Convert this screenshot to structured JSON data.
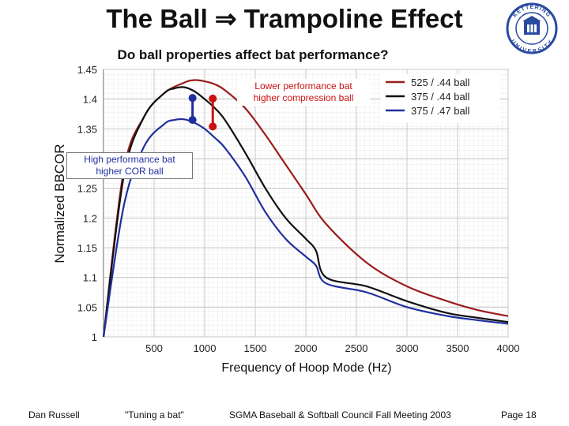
{
  "slide": {
    "title_prefix": "The Ball",
    "title_arrow": "⇒",
    "title_suffix": "Trampoline Effect",
    "subtitle": "Do ball properties affect bat performance?"
  },
  "logo": {
    "text_top": "KETTERING",
    "text_bottom": "UNIVERSITY",
    "color": "#2a4aa0"
  },
  "annotations": {
    "lower": [
      "Lower performance bat",
      "higher compression ball"
    ],
    "higher": [
      "High performance bat",
      "higher COR ball"
    ]
  },
  "footer": {
    "author": "Dan Russell",
    "talk": "\"Tuning a bat\"",
    "event": "SGMA Baseball & Softball Council Fall Meeting 2003",
    "page": "Page 18"
  },
  "chart_data": {
    "type": "line",
    "xlabel": "Frequency of Hoop Mode (Hz)",
    "ylabel": "Normalized BBCOR",
    "xlim": [
      0,
      4000
    ],
    "ylim": [
      1.0,
      1.45
    ],
    "x_ticks": [
      500,
      1000,
      1500,
      2000,
      2500,
      3000,
      3500,
      4000
    ],
    "x_tick_labels": [
      "500",
      "1000",
      "1500",
      "2000",
      "2500",
      "3000",
      "3500",
      "4000"
    ],
    "y_ticks": [
      1,
      1.05,
      1.1,
      1.15,
      1.2,
      1.25,
      1.3,
      1.35,
      1.4,
      1.45
    ],
    "y_tick_labels": [
      "1",
      "1.05",
      "1.1",
      "1.15",
      "1.2",
      "1.25",
      "1.3",
      "1.35",
      "1.4",
      "1.45"
    ],
    "grid": true,
    "legend_position": "top-right",
    "series": [
      {
        "name": "525 / .44 ball",
        "color": "#9b1c1c",
        "x": [
          0,
          200,
          400,
          600,
          800,
          900,
          1000,
          1100,
          1200,
          1400,
          1600,
          1800,
          2000,
          2200,
          2600,
          3000,
          3400,
          3700,
          4000
        ],
        "y": [
          1.0,
          1.28,
          1.37,
          1.41,
          1.428,
          1.432,
          1.43,
          1.425,
          1.415,
          1.385,
          1.34,
          1.29,
          1.24,
          1.19,
          1.125,
          1.085,
          1.06,
          1.045,
          1.035
        ]
      },
      {
        "name": "375 / .44 ball",
        "color": "#111111",
        "x": [
          0,
          200,
          400,
          600,
          700,
          800,
          900,
          1000,
          1100,
          1200,
          1400,
          1600,
          1800,
          2000,
          2100,
          2200,
          2600,
          3000,
          3400,
          3700,
          4000
        ],
        "y": [
          1.0,
          1.27,
          1.37,
          1.41,
          1.418,
          1.42,
          1.413,
          1.4,
          1.385,
          1.365,
          1.31,
          1.25,
          1.2,
          1.165,
          1.145,
          1.1,
          1.085,
          1.06,
          1.04,
          1.032,
          1.025
        ]
      },
      {
        "name": "375 / .47 ball",
        "color": "#1f2f9e",
        "x": [
          0,
          200,
          400,
          600,
          700,
          800,
          900,
          1000,
          1100,
          1200,
          1400,
          1600,
          1800,
          2000,
          2100,
          2200,
          2600,
          3000,
          3400,
          3700,
          4000
        ],
        "y": [
          1.0,
          1.22,
          1.32,
          1.358,
          1.365,
          1.366,
          1.36,
          1.35,
          1.335,
          1.318,
          1.27,
          1.21,
          1.165,
          1.135,
          1.12,
          1.09,
          1.075,
          1.05,
          1.035,
          1.028,
          1.022
        ]
      }
    ],
    "markers": [
      {
        "x": 880,
        "y_from": 1.365,
        "y_to": 1.402,
        "color": "#1f2f9e",
        "label_ref": "higher"
      },
      {
        "x": 1080,
        "y_from": 1.354,
        "y_to": 1.401,
        "color": "#cc1111",
        "label_ref": "lower"
      }
    ]
  }
}
